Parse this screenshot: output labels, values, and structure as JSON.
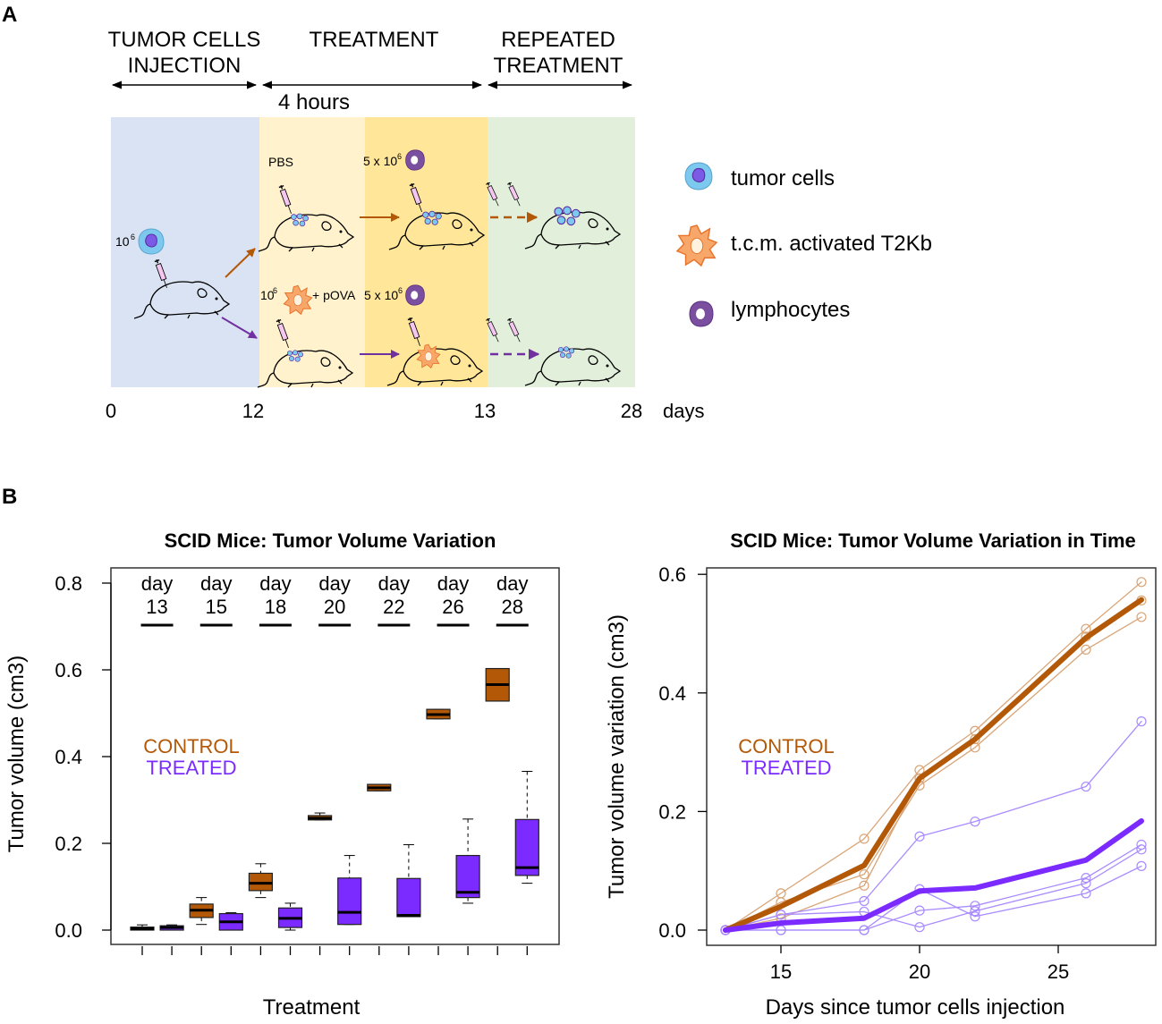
{
  "panel_a": {
    "label": "A",
    "phases": [
      {
        "line1": "TUMOR CELLS",
        "line2": "INJECTION"
      },
      {
        "line1": "TREATMENT",
        "line2": ""
      },
      {
        "line1": "REPEATED",
        "line2": "TREATMENT"
      }
    ],
    "duration": "4 hours",
    "timeline": [
      "0",
      "12",
      "13",
      "28",
      "days"
    ],
    "annotations": {
      "initial_dose": "10",
      "initial_exp": "6",
      "pbs": "PBS",
      "lymph_dose_1": "5 x 10",
      "lymph_exp_1": "6",
      "tcm_dose": "10",
      "tcm_exp": "6",
      "povA": "+ pOVA",
      "lymph_dose_2": "5 x 10",
      "lymph_exp_2": "6"
    },
    "legend": [
      {
        "icon": "tumor-cell-icon",
        "label": "tumor cells"
      },
      {
        "icon": "activated-t2kb-icon",
        "label": "t.c.m. activated T2Kb"
      },
      {
        "icon": "lymphocyte-icon",
        "label": "lymphocytes"
      }
    ],
    "colors": {
      "injection_bg": "#DAE3F3",
      "treatment_bg": "#FFF2CC",
      "treatment2_bg": "#FFE699",
      "repeated_bg": "#E2EFDA",
      "control": "#B35806",
      "treated": "#7030A0"
    }
  },
  "panel_b_label": "B",
  "chart_data": [
    {
      "type": "box",
      "title": "SCID Mice: Tumor Volume Variation",
      "xlabel": "Treatment",
      "ylabel": "Tumor volume (cm3)",
      "ylim": [
        -0.01,
        0.83
      ],
      "yticks": [
        "0.0",
        "0.2",
        "0.4",
        "0.6",
        "0.8"
      ],
      "yticks_values": [
        0,
        0.2,
        0.4,
        0.6,
        0.8
      ],
      "grid": false,
      "legend": [
        {
          "label": "CONTROL",
          "color": "#B35806"
        },
        {
          "label": "TREATED",
          "color": "#7B2BFF"
        }
      ],
      "legend_placement": "center-left",
      "group_header": "day",
      "days": [
        "13",
        "15",
        "18",
        "20",
        "22",
        "26",
        "28"
      ],
      "series": [
        {
          "name": "CONTROL",
          "color": "#B35806",
          "boxes": [
            {
              "min": 0.0,
              "q1": 0.0,
              "median": 0.003,
              "q3": 0.007,
              "max": 0.012
            },
            {
              "min": 0.013,
              "q1": 0.029,
              "median": 0.046,
              "q3": 0.06,
              "max": 0.075
            },
            {
              "min": 0.075,
              "q1": 0.091,
              "median": 0.108,
              "q3": 0.131,
              "max": 0.153
            },
            {
              "min": 0.254,
              "q1": 0.254,
              "median": 0.258,
              "q3": 0.264,
              "max": 0.27
            },
            {
              "min": 0.321,
              "q1": 0.321,
              "median": 0.328,
              "q3": 0.336,
              "max": 0.336
            },
            {
              "min": 0.487,
              "q1": 0.487,
              "median": 0.497,
              "q3": 0.509,
              "max": 0.509
            },
            {
              "min": 0.528,
              "q1": 0.528,
              "median": 0.566,
              "q3": 0.603,
              "max": 0.603
            }
          ]
        },
        {
          "name": "TREATED",
          "color": "#7B2BFF",
          "boxes": [
            {
              "min": 0.0,
              "q1": 0.0,
              "median": 0.006,
              "q3": 0.01,
              "max": 0.012
            },
            {
              "min": 0.0,
              "q1": 0.0,
              "median": 0.019,
              "q3": 0.038,
              "max": 0.04
            },
            {
              "min": 0.0,
              "q1": 0.006,
              "median": 0.027,
              "q3": 0.051,
              "max": 0.062
            },
            {
              "min": 0.013,
              "q1": 0.013,
              "median": 0.041,
              "q3": 0.12,
              "max": 0.172
            },
            {
              "min": 0.031,
              "q1": 0.031,
              "median": 0.034,
              "q3": 0.119,
              "max": 0.197
            },
            {
              "min": 0.062,
              "q1": 0.075,
              "median": 0.087,
              "q3": 0.172,
              "max": 0.256
            },
            {
              "min": 0.108,
              "q1": 0.126,
              "median": 0.144,
              "q3": 0.255,
              "max": 0.366
            }
          ]
        }
      ]
    },
    {
      "type": "line",
      "title": "SCID Mice: Tumor Volume Variation in Time",
      "xlabel": "Days since tumor cells injection",
      "ylabel": "Tumor volume variation (cm3)",
      "xlim": [
        12.6,
        28.6
      ],
      "ylim": [
        -0.005,
        0.615
      ],
      "xticks": [
        "15",
        "20",
        "25"
      ],
      "xticks_values": [
        15,
        20,
        25
      ],
      "yticks": [
        "0.0",
        "0.2",
        "0.4",
        "0.6"
      ],
      "yticks_values": [
        0,
        0.2,
        0.4,
        0.6
      ],
      "grid": false,
      "legend": [
        {
          "label": "CONTROL",
          "color": "#B35806"
        },
        {
          "label": "TREATED",
          "color": "#7B2BFF"
        }
      ],
      "legend_placement": "center-left",
      "x": [
        13,
        15,
        18,
        20,
        22,
        26,
        28
      ],
      "series": [
        {
          "name": "CONTROL mean",
          "color": "#B35806",
          "style": "thick",
          "values": [
            0,
            0.04,
            0.109,
            0.256,
            0.322,
            0.493,
            0.557
          ]
        },
        {
          "name": "CONTROL mouse 1",
          "color": "#D9A577",
          "style": "individual",
          "values": [
            0,
            0.062,
            0.154,
            0.27,
            0.336,
            0.508,
            0.587
          ]
        },
        {
          "name": "CONTROL mouse 2",
          "color": "#D9A577",
          "style": "individual",
          "values": [
            0,
            0.047,
            0.094,
            0.244,
            0.308,
            0.473,
            0.528
          ]
        },
        {
          "name": "CONTROL mouse 3",
          "color": "#D9A577",
          "style": "individual",
          "values": [
            0,
            0.02,
            0.075,
            0.256,
            0.322,
            0.495,
            0.556
          ]
        },
        {
          "name": "TREATED mean",
          "color": "#7B2BFF",
          "style": "thick",
          "values": [
            0,
            0.012,
            0.02,
            0.066,
            0.071,
            0.118,
            0.184
          ]
        },
        {
          "name": "TREATED mouse 1",
          "color": "#A98BFF",
          "style": "individual",
          "values": [
            0,
            0.026,
            0.049,
            0.158,
            0.183,
            0.242,
            0.352
          ]
        },
        {
          "name": "TREATED mouse 2",
          "color": "#A98BFF",
          "style": "individual",
          "values": [
            0,
            0.026,
            0.031,
            0.005,
            0.032,
            0.079,
            0.136
          ]
        },
        {
          "name": "TREATED mouse 3",
          "color": "#A98BFF",
          "style": "individual",
          "values": [
            0,
            0.0,
            0.0,
            0.033,
            0.041,
            0.088,
            0.144
          ]
        },
        {
          "name": "TREATED mouse 4",
          "color": "#A98BFF",
          "style": "individual",
          "values": [
            0,
            0.0,
            0.0,
            0.069,
            0.023,
            0.062,
            0.108
          ]
        }
      ]
    }
  ]
}
